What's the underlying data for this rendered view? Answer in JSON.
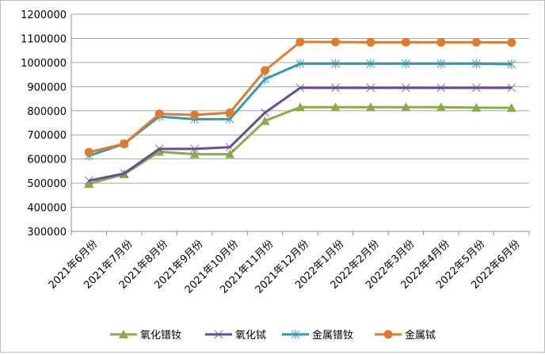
{
  "chart_data": {
    "type": "line",
    "title": "",
    "xlabel": "",
    "ylabel": "",
    "ylim": [
      300000,
      1200000
    ],
    "ytick_step": 100000,
    "grid": true,
    "legend_position": "bottom",
    "categories": [
      "2021年6月份",
      "2021年7月份",
      "2021年8月份",
      "2021年9月份",
      "2021年10月份",
      "2021年11月份",
      "2021年12月份",
      "2022年1月份",
      "2022年2月份",
      "2022年3月份",
      "2022年4月份",
      "2022年5月份",
      "2022年6月份"
    ],
    "series": [
      {
        "name": "氧化镨钕",
        "color": "#8aac46",
        "marker": "triangle",
        "values": [
          497000,
          537000,
          630000,
          620000,
          620000,
          758000,
          815000,
          815000,
          815000,
          815000,
          815000,
          813000,
          812000
        ]
      },
      {
        "name": "氧化铽",
        "color": "#6a4c93",
        "marker": "x",
        "values": [
          510000,
          540000,
          642000,
          642000,
          649000,
          792000,
          895000,
          895000,
          895000,
          895000,
          895000,
          895000,
          895000
        ]
      },
      {
        "name": "金属镨钕",
        "color": "#2e9bb0",
        "marker": "star",
        "values": [
          613000,
          663000,
          776000,
          765000,
          765000,
          931000,
          995000,
          995000,
          995000,
          995000,
          995000,
          995000,
          993000
        ]
      },
      {
        "name": "金属铽",
        "color": "#e07b2e",
        "marker": "circle",
        "values": [
          628000,
          663000,
          787000,
          783000,
          792000,
          967000,
          1085000,
          1085000,
          1084000,
          1084000,
          1084000,
          1084000,
          1083000
        ]
      }
    ]
  }
}
